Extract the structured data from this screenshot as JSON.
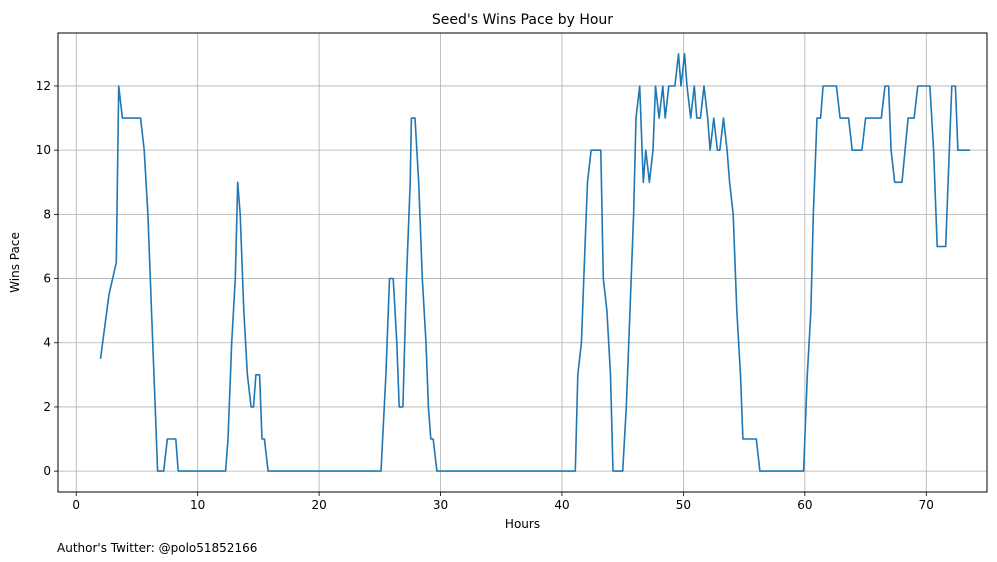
{
  "chart_data": {
    "type": "line",
    "title": "Seed's Wins Pace by Hour",
    "xlabel": "Hours",
    "ylabel": "Wins Pace",
    "xlim": [
      -1.5,
      75
    ],
    "ylim": [
      -0.65,
      13.65
    ],
    "xticks": [
      0,
      10,
      20,
      30,
      40,
      50,
      60,
      70
    ],
    "yticks": [
      0,
      2,
      4,
      6,
      8,
      10,
      12
    ],
    "grid": true,
    "footnote": "Author's Twitter: @polo51852166",
    "series": [
      {
        "color": "#1f77b4",
        "points": [
          [
            2.0,
            3.5
          ],
          [
            2.7,
            5.5
          ],
          [
            3.3,
            6.5
          ],
          [
            3.5,
            12.0
          ],
          [
            3.8,
            11.0
          ],
          [
            5.3,
            11.0
          ],
          [
            5.6,
            10.0
          ],
          [
            5.9,
            8.0
          ],
          [
            6.2,
            5.0
          ],
          [
            6.5,
            2.0
          ],
          [
            6.7,
            0.0
          ],
          [
            7.2,
            0.0
          ],
          [
            7.5,
            1.0
          ],
          [
            8.2,
            1.0
          ],
          [
            8.4,
            0.0
          ],
          [
            12.3,
            0.0
          ],
          [
            12.5,
            1.0
          ],
          [
            12.8,
            4.0
          ],
          [
            13.1,
            6.0
          ],
          [
            13.3,
            9.0
          ],
          [
            13.5,
            8.0
          ],
          [
            13.8,
            5.0
          ],
          [
            14.1,
            3.0
          ],
          [
            14.4,
            2.0
          ],
          [
            14.6,
            2.0
          ],
          [
            14.8,
            3.0
          ],
          [
            15.1,
            3.0
          ],
          [
            15.3,
            1.0
          ],
          [
            15.5,
            1.0
          ],
          [
            15.8,
            0.0
          ],
          [
            25.1,
            0.0
          ],
          [
            25.5,
            3.0
          ],
          [
            25.8,
            6.0
          ],
          [
            26.1,
            6.0
          ],
          [
            26.4,
            4.0
          ],
          [
            26.6,
            2.0
          ],
          [
            26.9,
            2.0
          ],
          [
            27.2,
            6.0
          ],
          [
            27.5,
            9.0
          ],
          [
            27.6,
            11.0
          ],
          [
            27.9,
            11.0
          ],
          [
            28.2,
            9.0
          ],
          [
            28.5,
            6.0
          ],
          [
            28.8,
            4.0
          ],
          [
            29.0,
            2.0
          ],
          [
            29.2,
            1.0
          ],
          [
            29.4,
            1.0
          ],
          [
            29.7,
            0.0
          ],
          [
            41.1,
            0.0
          ],
          [
            41.3,
            3.0
          ],
          [
            41.6,
            4.0
          ],
          [
            41.9,
            7.0
          ],
          [
            42.1,
            9.0
          ],
          [
            42.4,
            10.0
          ],
          [
            43.2,
            10.0
          ],
          [
            43.4,
            6.0
          ],
          [
            43.7,
            5.0
          ],
          [
            44.0,
            3.0
          ],
          [
            44.2,
            0.0
          ],
          [
            45.0,
            0.0
          ],
          [
            45.3,
            2.0
          ],
          [
            45.6,
            5.0
          ],
          [
            45.9,
            8.0
          ],
          [
            46.1,
            11.0
          ],
          [
            46.4,
            12.0
          ],
          [
            46.7,
            9.0
          ],
          [
            46.9,
            10.0
          ],
          [
            47.2,
            9.0
          ],
          [
            47.5,
            10.0
          ],
          [
            47.7,
            12.0
          ],
          [
            48.0,
            11.0
          ],
          [
            48.3,
            12.0
          ],
          [
            48.5,
            11.0
          ],
          [
            48.8,
            12.0
          ],
          [
            49.3,
            12.0
          ],
          [
            49.6,
            13.0
          ],
          [
            49.8,
            12.0
          ],
          [
            50.1,
            13.0
          ],
          [
            50.3,
            12.0
          ],
          [
            50.6,
            11.0
          ],
          [
            50.9,
            12.0
          ],
          [
            51.1,
            11.0
          ],
          [
            51.4,
            11.0
          ],
          [
            51.7,
            12.0
          ],
          [
            52.0,
            11.0
          ],
          [
            52.2,
            10.0
          ],
          [
            52.5,
            11.0
          ],
          [
            52.8,
            10.0
          ],
          [
            53.0,
            10.0
          ],
          [
            53.3,
            11.0
          ],
          [
            53.6,
            10.0
          ],
          [
            53.8,
            9.0
          ],
          [
            54.1,
            8.0
          ],
          [
            54.4,
            5.0
          ],
          [
            54.7,
            3.0
          ],
          [
            54.9,
            1.0
          ],
          [
            56.0,
            1.0
          ],
          [
            56.3,
            0.0
          ],
          [
            59.9,
            0.0
          ],
          [
            60.2,
            3.0
          ],
          [
            60.5,
            5.0
          ],
          [
            60.7,
            8.0
          ],
          [
            61.0,
            11.0
          ],
          [
            61.3,
            11.0
          ],
          [
            61.5,
            12.0
          ],
          [
            62.6,
            12.0
          ],
          [
            62.9,
            11.0
          ],
          [
            63.6,
            11.0
          ],
          [
            63.9,
            10.0
          ],
          [
            64.7,
            10.0
          ],
          [
            65.0,
            11.0
          ],
          [
            66.3,
            11.0
          ],
          [
            66.6,
            12.0
          ],
          [
            66.9,
            12.0
          ],
          [
            67.1,
            10.0
          ],
          [
            67.4,
            9.0
          ],
          [
            68.0,
            9.0
          ],
          [
            68.5,
            11.0
          ],
          [
            69.0,
            11.0
          ],
          [
            69.3,
            12.0
          ],
          [
            70.3,
            12.0
          ],
          [
            70.6,
            10.0
          ],
          [
            70.9,
            7.0
          ],
          [
            71.6,
            7.0
          ],
          [
            71.8,
            9.0
          ],
          [
            72.1,
            12.0
          ],
          [
            72.4,
            12.0
          ],
          [
            72.6,
            10.0
          ],
          [
            73.6,
            10.0
          ]
        ]
      }
    ]
  }
}
